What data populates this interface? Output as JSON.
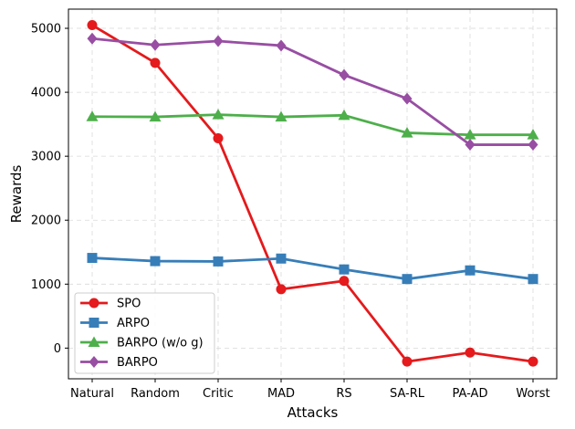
{
  "chart_data": {
    "type": "line",
    "title": "",
    "xlabel": "Attacks",
    "ylabel": "Rewards",
    "categories": [
      "Natural",
      "Random",
      "Critic",
      "MAD",
      "RS",
      "SA-RL",
      "PA-AD",
      "Worst"
    ],
    "ylim": [
      -480,
      5300
    ],
    "yticks": [
      0,
      1000,
      2000,
      3000,
      4000,
      5000
    ],
    "grid": true,
    "legend_position": "lower-left",
    "series": [
      {
        "name": "SPO",
        "color": "#e41a1c",
        "marker": "circle",
        "values": [
          5050,
          4460,
          3280,
          920,
          1050,
          -210,
          -70,
          -210
        ]
      },
      {
        "name": "ARPO",
        "color": "#377eb8",
        "marker": "square",
        "values": [
          1410,
          1360,
          1355,
          1400,
          1230,
          1080,
          1215,
          1080
        ]
      },
      {
        "name": "BARPO (w/o g)",
        "color": "#4daf4a",
        "marker": "triangle",
        "values": [
          3620,
          3615,
          3650,
          3615,
          3640,
          3365,
          3335,
          3335
        ]
      },
      {
        "name": "BARPO",
        "color": "#984ea3",
        "marker": "diamond",
        "values": [
          4840,
          4740,
          4800,
          4730,
          4270,
          3900,
          3180,
          3180
        ]
      }
    ]
  }
}
